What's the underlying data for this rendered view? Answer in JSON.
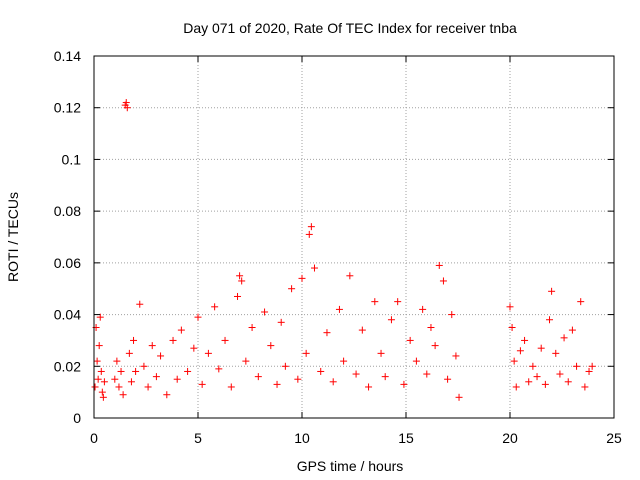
{
  "chart_data": {
    "type": "scatter",
    "title": "Day 071 of 2020, Rate Of TEC Index for receiver tnba",
    "xlabel": "GPS time / hours",
    "ylabel": "ROTI / TECUs",
    "xlim": [
      0,
      25
    ],
    "ylim": [
      0,
      0.14
    ],
    "xticks": [
      0,
      5,
      10,
      15,
      20,
      25
    ],
    "xtick_labels": [
      "0",
      "5",
      "10",
      "15",
      "20",
      "25"
    ],
    "yticks": [
      0,
      0.02,
      0.04,
      0.06,
      0.08,
      0.1,
      0.12,
      0.14
    ],
    "ytick_labels": [
      "0",
      "0.02",
      "0.04",
      "0.06",
      "0.08",
      "0.1",
      "0.12",
      "0.14"
    ],
    "grid": true,
    "marker": "plus",
    "series": [
      {
        "name": "ROTI",
        "color": "#ff0000",
        "x": [
          0.05,
          0.1,
          0.15,
          0.2,
          0.25,
          0.3,
          0.35,
          0.4,
          0.45,
          0.5,
          1.0,
          1.1,
          1.2,
          1.3,
          1.4,
          1.5,
          1.55,
          1.6,
          1.7,
          1.8,
          1.9,
          2.0,
          2.2,
          2.4,
          2.6,
          2.8,
          3.0,
          3.2,
          3.5,
          3.8,
          4.0,
          4.2,
          4.5,
          4.8,
          5.0,
          5.2,
          5.5,
          5.8,
          6.0,
          6.3,
          6.6,
          6.9,
          7.0,
          7.1,
          7.3,
          7.6,
          7.9,
          8.2,
          8.5,
          8.8,
          9.0,
          9.2,
          9.5,
          9.8,
          10.0,
          10.2,
          10.35,
          10.45,
          10.6,
          10.9,
          11.2,
          11.5,
          11.8,
          12.0,
          12.3,
          12.6,
          12.9,
          13.2,
          13.5,
          13.8,
          14.0,
          14.3,
          14.6,
          14.9,
          15.2,
          15.5,
          15.8,
          16.0,
          16.2,
          16.4,
          16.6,
          16.8,
          17.0,
          17.2,
          17.4,
          17.55,
          20.0,
          20.1,
          20.2,
          20.3,
          20.5,
          20.7,
          20.9,
          21.1,
          21.3,
          21.5,
          21.7,
          21.9,
          22.0,
          22.2,
          22.4,
          22.6,
          22.8,
          23.0,
          23.2,
          23.4,
          23.6,
          23.8,
          23.95
        ],
        "y": [
          0.012,
          0.035,
          0.022,
          0.015,
          0.028,
          0.039,
          0.018,
          0.01,
          0.008,
          0.014,
          0.015,
          0.022,
          0.012,
          0.018,
          0.009,
          0.121,
          0.122,
          0.12,
          0.025,
          0.014,
          0.03,
          0.018,
          0.044,
          0.02,
          0.012,
          0.028,
          0.016,
          0.024,
          0.009,
          0.03,
          0.015,
          0.034,
          0.018,
          0.027,
          0.039,
          0.013,
          0.025,
          0.043,
          0.019,
          0.03,
          0.012,
          0.047,
          0.055,
          0.053,
          0.022,
          0.035,
          0.016,
          0.041,
          0.028,
          0.013,
          0.037,
          0.02,
          0.05,
          0.015,
          0.054,
          0.025,
          0.071,
          0.074,
          0.058,
          0.018,
          0.033,
          0.014,
          0.042,
          0.022,
          0.055,
          0.017,
          0.034,
          0.012,
          0.045,
          0.025,
          0.016,
          0.038,
          0.045,
          0.013,
          0.03,
          0.022,
          0.042,
          0.017,
          0.035,
          0.028,
          0.059,
          0.053,
          0.015,
          0.04,
          0.024,
          0.008,
          0.043,
          0.035,
          0.022,
          0.012,
          0.026,
          0.03,
          0.014,
          0.02,
          0.016,
          0.027,
          0.013,
          0.038,
          0.049,
          0.025,
          0.017,
          0.031,
          0.014,
          0.034,
          0.02,
          0.045,
          0.012,
          0.018,
          0.02
        ]
      }
    ]
  }
}
